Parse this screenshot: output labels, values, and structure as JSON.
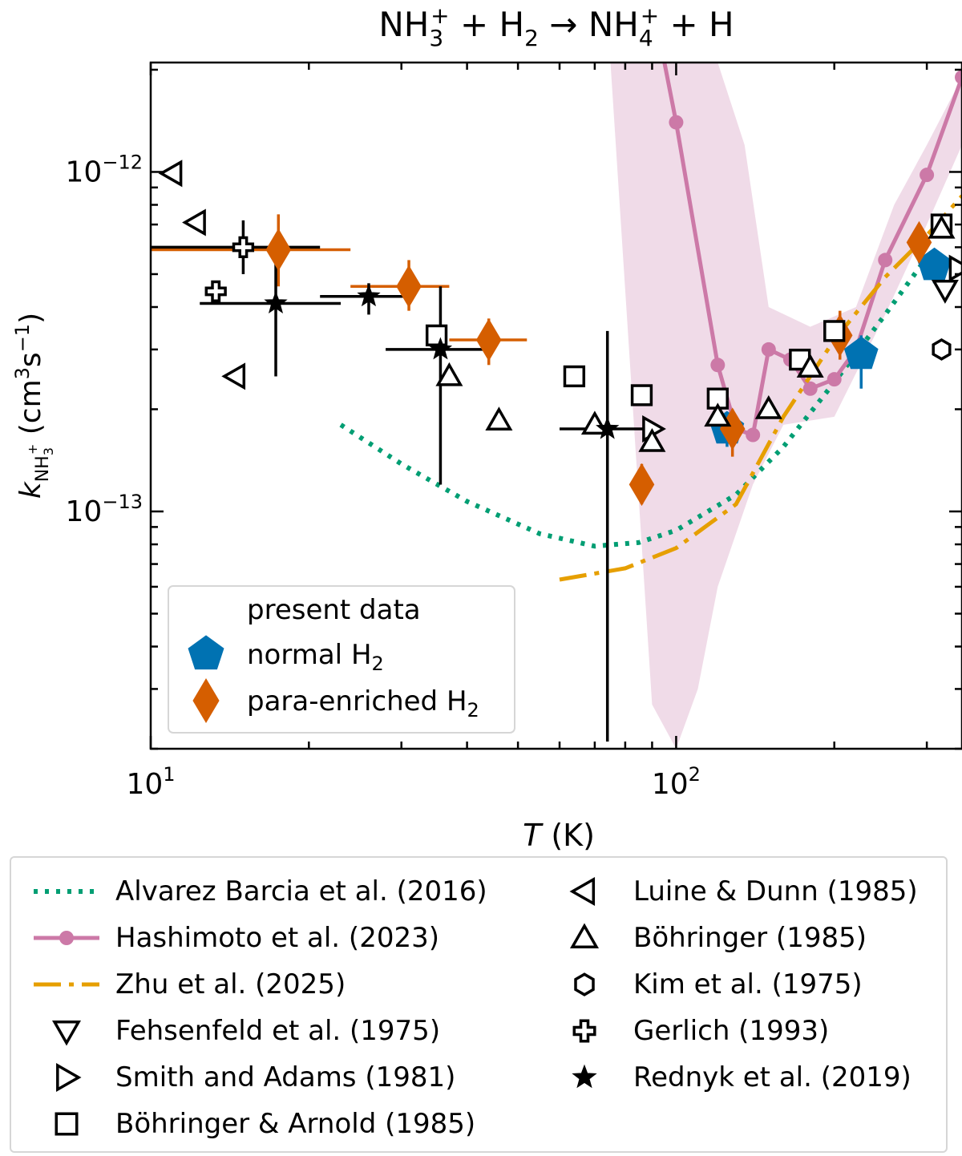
{
  "chart_data": {
    "type": "scatter",
    "title": {
      "part1": "NH",
      "sub1": "3",
      "sup1": "+",
      "part2": " + H",
      "sub2": "2",
      "arrow": " → ",
      "part3": "NH",
      "sub3": "4",
      "sup3": "+",
      "part4": " + H"
    },
    "xlabel": {
      "var": "T",
      "unit": " (K)"
    },
    "ylabel": {
      "var": "k",
      "sub": "NH",
      "subsub": "3",
      "subsup": "+",
      "unit_open": " (cm",
      "unit_exp1": "3",
      "unit_mid": "s",
      "unit_exp2": "−1",
      "unit_close": ")"
    },
    "xscale": "log",
    "yscale": "log",
    "xlim": [
      10,
      350
    ],
    "ylim": [
      2e-14,
      2.1e-12
    ],
    "xticks": [
      {
        "value": 10,
        "base": "10",
        "exp": "1"
      },
      {
        "value": 100,
        "base": "10",
        "exp": "2"
      }
    ],
    "yticks": [
      {
        "value": 1e-13,
        "base": "10",
        "exp": "−13"
      },
      {
        "value": 1e-12,
        "base": "10",
        "exp": "−12"
      }
    ],
    "legend_inside": {
      "title": "present data",
      "entries": [
        {
          "label": "normal H",
          "sub": "2",
          "marker": "pentagon",
          "color": "#0072b2"
        },
        {
          "label": "para-enriched H",
          "sub": "2",
          "marker": "diamond",
          "color": "#d55e00"
        }
      ],
      "placement": "lower-left"
    },
    "series": [
      {
        "name": "present normal H2",
        "marker": "pentagon",
        "color": "#0072b2",
        "points": [
          {
            "x": 125,
            "y": 1.75e-13,
            "yerr": [
              1.55e-13,
              1.95e-13
            ]
          },
          {
            "x": 225,
            "y": 2.9e-13,
            "yerr": [
              2.3e-13,
              3.3e-13
            ]
          },
          {
            "x": 310,
            "y": 5.3e-13,
            "yerr": [
              4.7e-13,
              5.9e-13
            ]
          }
        ]
      },
      {
        "name": "present para-enriched H2",
        "marker": "diamond",
        "color": "#d55e00",
        "points": [
          {
            "x": 17.5,
            "y": 5.9e-13,
            "xerr": [
              10,
              24
            ],
            "yerr": [
              4.6e-13,
              7.5e-13
            ]
          },
          {
            "x": 31,
            "y": 4.6e-13,
            "xerr": [
              24,
              37
            ],
            "yerr": [
              3.9e-13,
              5.5e-13
            ]
          },
          {
            "x": 44,
            "y": 3.2e-13,
            "xerr": [
              37,
              52
            ],
            "yerr": [
              2.7e-13,
              3.7e-13
            ]
          },
          {
            "x": 86,
            "y": 1.2e-13,
            "yerr": [
              1.05e-13,
              1.38e-13
            ]
          },
          {
            "x": 128,
            "y": 1.75e-13,
            "yerr": [
              1.45e-13,
              2e-13
            ]
          },
          {
            "x": 205,
            "y": 3.3e-13,
            "yerr": [
              2.8e-13,
              3.9e-13
            ]
          },
          {
            "x": 290,
            "y": 6.2e-13,
            "yerr": [
              5.5e-13,
              7e-13
            ]
          }
        ]
      },
      {
        "name": "Alvarez Barcia et al. (2016)",
        "line": "dotted",
        "color": "#009e73",
        "points": [
          {
            "x": 23,
            "y": 1.8e-13
          },
          {
            "x": 30,
            "y": 1.38e-13
          },
          {
            "x": 40,
            "y": 1.07e-13
          },
          {
            "x": 55,
            "y": 8.6e-14
          },
          {
            "x": 70,
            "y": 7.9e-14
          },
          {
            "x": 85,
            "y": 8.1e-14
          },
          {
            "x": 100,
            "y": 8.8e-14
          },
          {
            "x": 130,
            "y": 1.12e-13
          },
          {
            "x": 160,
            "y": 1.55e-13
          },
          {
            "x": 200,
            "y": 2.4e-13
          },
          {
            "x": 250,
            "y": 3.8e-13
          },
          {
            "x": 300,
            "y": 5.6e-13
          }
        ]
      },
      {
        "name": "Hashimoto et al. (2023)",
        "line": "solid-circle",
        "color": "#cc79a7",
        "points": [
          {
            "x": 95,
            "y": 2.1e-12
          },
          {
            "x": 100,
            "y": 1.4e-12
          },
          {
            "x": 120,
            "y": 2.7e-13
          },
          {
            "x": 130,
            "y": 1.75e-13
          },
          {
            "x": 140,
            "y": 1.68e-13
          },
          {
            "x": 150,
            "y": 3e-13
          },
          {
            "x": 165,
            "y": 2.8e-13
          },
          {
            "x": 180,
            "y": 2.3e-13
          },
          {
            "x": 200,
            "y": 2.45e-13
          },
          {
            "x": 220,
            "y": 3e-13
          },
          {
            "x": 250,
            "y": 5.5e-13
          },
          {
            "x": 300,
            "y": 9.8e-13
          },
          {
            "x": 350,
            "y": 1.9e-12
          }
        ]
      },
      {
        "name": "Hashimoto et al. (2023) uncertainty",
        "band": true,
        "color": "#e6c3d8",
        "upper": [
          {
            "x": 75,
            "y": 2.1e-12
          },
          {
            "x": 100,
            "y": 2.1e-12
          },
          {
            "x": 120,
            "y": 2.1e-12
          },
          {
            "x": 135,
            "y": 1.2e-12
          },
          {
            "x": 150,
            "y": 4e-13
          },
          {
            "x": 180,
            "y": 3.5e-13
          },
          {
            "x": 220,
            "y": 4e-13
          },
          {
            "x": 260,
            "y": 8e-13
          },
          {
            "x": 300,
            "y": 1.2e-12
          },
          {
            "x": 350,
            "y": 1.9e-12
          }
        ],
        "lower": [
          {
            "x": 350,
            "y": 1.2e-12
          },
          {
            "x": 300,
            "y": 7e-13
          },
          {
            "x": 250,
            "y": 3.8e-13
          },
          {
            "x": 200,
            "y": 1.9e-13
          },
          {
            "x": 160,
            "y": 1.8e-13
          },
          {
            "x": 140,
            "y": 1.2e-13
          },
          {
            "x": 120,
            "y": 6e-14
          },
          {
            "x": 110,
            "y": 3e-14
          },
          {
            "x": 100,
            "y": 2e-14
          },
          {
            "x": 90,
            "y": 2.7e-14
          },
          {
            "x": 75,
            "y": 2.1e-12
          }
        ]
      },
      {
        "name": "Zhu et al. (2025)",
        "line": "dashdot",
        "color": "#e69f00",
        "points": [
          {
            "x": 60,
            "y": 6.3e-14
          },
          {
            "x": 80,
            "y": 6.8e-14
          },
          {
            "x": 100,
            "y": 7.8e-14
          },
          {
            "x": 130,
            "y": 1.05e-13
          },
          {
            "x": 160,
            "y": 1.9e-13
          },
          {
            "x": 200,
            "y": 3.2e-13
          },
          {
            "x": 250,
            "y": 4.9e-13
          },
          {
            "x": 300,
            "y": 6.5e-13
          },
          {
            "x": 350,
            "y": 8.5e-13
          }
        ]
      },
      {
        "name": "Fehsenfeld et al. (1975)",
        "marker": "triangle-down",
        "color": "#000000",
        "points": [
          {
            "x": 325,
            "y": 4.5e-13
          }
        ]
      },
      {
        "name": "Smith and Adams (1981)",
        "marker": "triangle-right",
        "color": "#000000",
        "points": [
          {
            "x": 90,
            "y": 1.75e-13
          },
          {
            "x": 345,
            "y": 5.2e-13
          }
        ]
      },
      {
        "name": "Böhringer & Arnold (1985)",
        "marker": "square",
        "color": "#000000",
        "points": [
          {
            "x": 35,
            "y": 3.3e-13
          },
          {
            "x": 64,
            "y": 2.5e-13
          },
          {
            "x": 86,
            "y": 2.2e-13
          },
          {
            "x": 120,
            "y": 2.15e-13
          },
          {
            "x": 172,
            "y": 2.8e-13
          },
          {
            "x": 200,
            "y": 3.4e-13
          },
          {
            "x": 320,
            "y": 7e-13
          }
        ]
      },
      {
        "name": "Luine & Dunn (1985)",
        "marker": "triangle-left",
        "color": "#000000",
        "points": [
          {
            "x": 11,
            "y": 9.9e-13
          },
          {
            "x": 12.2,
            "y": 7.1e-13
          },
          {
            "x": 14.5,
            "y": 2.5e-13
          }
        ]
      },
      {
        "name": "Böhringer (1985)",
        "marker": "triangle-up",
        "color": "#000000",
        "points": [
          {
            "x": 37,
            "y": 2.5e-13
          },
          {
            "x": 46,
            "y": 1.85e-13
          },
          {
            "x": 70,
            "y": 1.8e-13
          },
          {
            "x": 90,
            "y": 1.6e-13
          },
          {
            "x": 120,
            "y": 1.9e-13
          },
          {
            "x": 150,
            "y": 2e-13
          },
          {
            "x": 180,
            "y": 2.65e-13
          },
          {
            "x": 320,
            "y": 6.8e-13
          }
        ]
      },
      {
        "name": "Kim et al. (1975)",
        "marker": "hexagon",
        "color": "#000000",
        "points": [
          {
            "x": 320,
            "y": 3e-13
          }
        ]
      },
      {
        "name": "Gerlich (1993)",
        "marker": "cross",
        "color": "#000000",
        "points": [
          {
            "x": 15,
            "y": 6e-13,
            "xerr": [
              10,
              21
            ],
            "yerr": [
              5e-13,
              7.2e-13
            ]
          },
          {
            "x": 13.3,
            "y": 4.45e-13
          }
        ]
      },
      {
        "name": "Rednyk et al. (2019)",
        "marker": "star",
        "color": "#000000",
        "points": [
          {
            "x": 17.3,
            "y": 4.1e-13,
            "xerr": [
              12.4,
              23
            ],
            "yerr": [
              2.5e-13,
              5.5e-13
            ]
          },
          {
            "x": 26,
            "y": 4.3e-13,
            "xerr": [
              21,
              31
            ],
            "yerr": [
              3.8e-13,
              4.7e-13
            ]
          },
          {
            "x": 35.6,
            "y": 3e-13,
            "xerr": [
              28,
              45
            ],
            "yerr": [
              1.2e-13,
              4.6e-13
            ]
          },
          {
            "x": 74,
            "y": 1.75e-13,
            "xerr": [
              60,
              90
            ],
            "yerr": [
              2.1e-14,
              3.4e-13
            ]
          }
        ]
      }
    ],
    "legend_outside": [
      {
        "label": "Alvarez Barcia et al. (2016)",
        "key": "dotted",
        "color": "#009e73"
      },
      {
        "label": "Hashimoto et al. (2023)",
        "key": "solid-circle",
        "color": "#cc79a7"
      },
      {
        "label": "Zhu et al. (2025)",
        "key": "dashdot",
        "color": "#e69f00"
      },
      {
        "label": "Fehsenfeld et al. (1975)",
        "key": "triangle-down",
        "color": "#000000"
      },
      {
        "label": "Smith and Adams (1981)",
        "key": "triangle-right",
        "color": "#000000"
      },
      {
        "label": "Böhringer & Arnold (1985)",
        "key": "square",
        "color": "#000000"
      },
      {
        "label": "Luine & Dunn (1985)",
        "key": "triangle-left",
        "color": "#000000"
      },
      {
        "label": "Böhringer (1985)",
        "key": "triangle-up",
        "color": "#000000"
      },
      {
        "label": "Kim et al. (1975)",
        "key": "hexagon",
        "color": "#000000"
      },
      {
        "label": "Gerlich (1993)",
        "key": "cross",
        "color": "#000000"
      },
      {
        "label": "Rednyk et al. (2019)",
        "key": "star",
        "color": "#000000"
      }
    ]
  }
}
